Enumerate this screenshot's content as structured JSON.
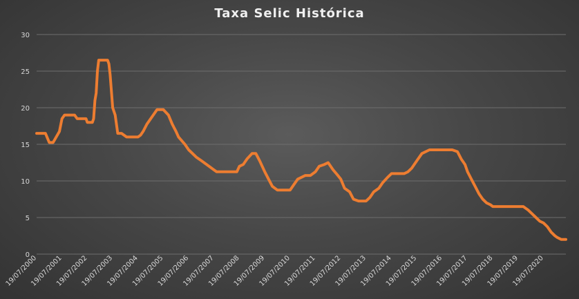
{
  "chart_data": {
    "type": "line",
    "title": "Taxa Selic Histórica",
    "xlabel": "",
    "ylabel": "",
    "ylim": [
      0,
      30
    ],
    "yticks": [
      "0",
      "5",
      "10",
      "15",
      "20",
      "25",
      "30"
    ],
    "xticks": [
      "19/07/2000",
      "19/07/2001",
      "19/07/2002",
      "19/07/2003",
      "19/07/2004",
      "19/07/2005",
      "19/07/2006",
      "19/07/2007",
      "19/07/2008",
      "19/07/2009",
      "19/07/2010",
      "19/07/2011",
      "19/07/2012",
      "19/07/2013",
      "19/07/2014",
      "19/07/2015",
      "19/07/2016",
      "19/07/2017",
      "19/07/2018",
      "19/07/2019",
      "19/07/2020"
    ],
    "grid": true,
    "legend": "none",
    "colors": {
      "line": "#ed7d31",
      "grid": "#6e6e6e",
      "text": "#d9d9d9"
    },
    "series": [
      {
        "x": [
          2000.0,
          2000.35,
          2000.5,
          2000.65,
          2000.9,
          2001.0,
          2001.1,
          2001.5,
          2001.6,
          2001.95,
          2002.0,
          2002.2,
          2002.25,
          2002.3,
          2002.35,
          2002.4,
          2002.45,
          2002.6,
          2002.8,
          2002.85,
          2002.9,
          2003.0,
          2003.1,
          2003.2,
          2003.35,
          2003.55,
          2003.65,
          2004.0,
          2004.1,
          2004.2,
          2004.35,
          2004.6,
          2004.75,
          2005.0,
          2005.2,
          2005.35,
          2005.5,
          2005.6,
          2005.85,
          2006.0,
          2006.3,
          2006.5,
          2006.8,
          2007.0,
          2007.1,
          2007.35,
          2007.7,
          2007.9,
          2008.0,
          2008.15,
          2008.3,
          2008.5,
          2008.65,
          2008.8,
          2009.0,
          2009.15,
          2009.3,
          2009.5,
          2009.7,
          2009.85,
          2010.0,
          2010.15,
          2010.3,
          2010.6,
          2010.8,
          2011.0,
          2011.15,
          2011.35,
          2011.5,
          2011.7,
          2011.85,
          2012.0,
          2012.15,
          2012.35,
          2012.5,
          2012.7,
          2012.9,
          2013.0,
          2013.15,
          2013.3,
          2013.5,
          2013.65,
          2013.85,
          2014.0,
          2014.3,
          2014.5,
          2014.65,
          2014.8,
          2015.0,
          2015.2,
          2015.5,
          2016.0,
          2016.4,
          2016.6,
          2016.75,
          2016.9,
          2017.0,
          2017.15,
          2017.3,
          2017.45,
          2017.6,
          2017.75,
          2017.9,
          2018.0,
          2018.2,
          2019.0,
          2019.2,
          2019.4,
          2019.55,
          2019.7,
          2019.85,
          2020.0,
          2020.15,
          2020.3,
          2020.45,
          2020.55,
          2020.7,
          2020.8,
          2020.88
        ],
        "y": [
          16.5,
          16.5,
          15.25,
          15.25,
          16.75,
          18.5,
          19.0,
          19.0,
          18.5,
          18.5,
          18.0,
          18.0,
          18.5,
          21.0,
          22.0,
          25.0,
          26.5,
          26.5,
          26.5,
          26.0,
          24.5,
          20.0,
          19.0,
          16.5,
          16.5,
          16.0,
          16.0,
          16.0,
          16.25,
          16.75,
          17.75,
          19.0,
          19.75,
          19.75,
          19.0,
          17.75,
          16.75,
          16.0,
          15.0,
          14.25,
          13.25,
          12.75,
          12.0,
          11.5,
          11.25,
          11.25,
          11.25,
          11.25,
          12.0,
          12.25,
          13.0,
          13.75,
          13.75,
          12.75,
          11.25,
          10.25,
          9.25,
          8.75,
          8.75,
          8.75,
          8.75,
          9.5,
          10.25,
          10.75,
          10.75,
          11.25,
          12.0,
          12.25,
          12.5,
          11.5,
          10.9,
          10.25,
          9.0,
          8.5,
          7.5,
          7.25,
          7.25,
          7.25,
          7.75,
          8.5,
          9.0,
          9.75,
          10.5,
          11.0,
          11.0,
          11.0,
          11.25,
          11.75,
          12.75,
          13.75,
          14.25,
          14.25,
          14.25,
          14.0,
          13.0,
          12.25,
          11.25,
          10.25,
          9.25,
          8.25,
          7.5,
          7.0,
          6.75,
          6.5,
          6.5,
          6.5,
          6.5,
          6.0,
          5.5,
          5.0,
          4.5,
          4.25,
          3.75,
          3.0,
          2.5,
          2.25,
          2.0,
          2.0,
          2.0
        ]
      }
    ]
  }
}
